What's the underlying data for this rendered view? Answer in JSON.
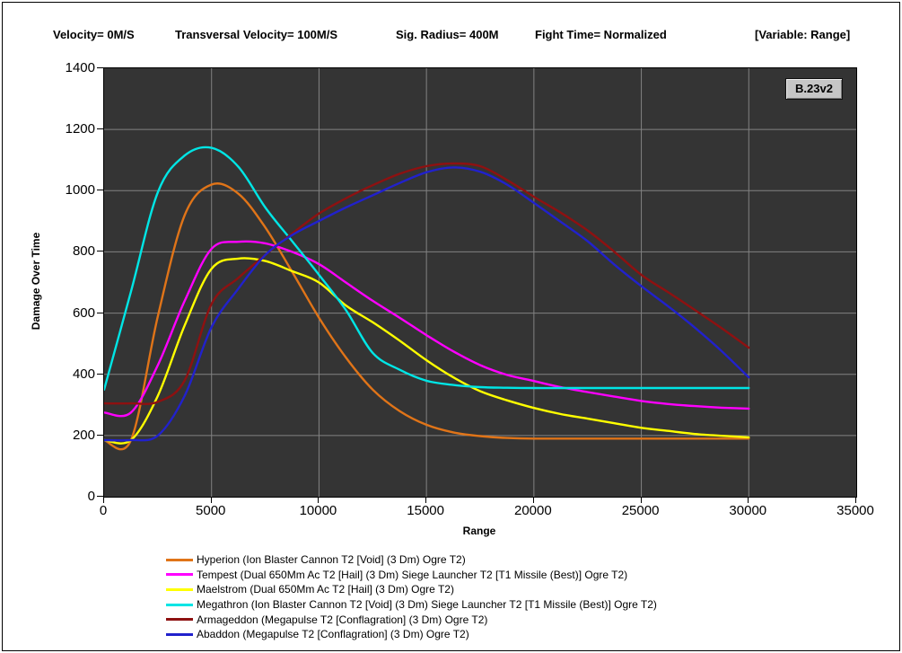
{
  "header": {
    "items": [
      "Velocity= 0M/S",
      "Transversal Velocity= 100M/S",
      "Sig. Radius= 400M",
      "Fight Time= Normalized",
      "[Variable: Range]"
    ]
  },
  "badge": "B.23v2",
  "chart_data": {
    "type": "line",
    "title": "",
    "xlabel": "Range",
    "ylabel": "Damage Over Time",
    "xlim": [
      0,
      35000
    ],
    "ylim": [
      0,
      1400
    ],
    "x_ticks": [
      0,
      5000,
      10000,
      15000,
      20000,
      25000,
      30000,
      35000
    ],
    "y_ticks": [
      0,
      200,
      400,
      600,
      800,
      1000,
      1200,
      1400
    ],
    "grid": true,
    "legend_position": "bottom",
    "plot_bg": "#343434",
    "grid_color": "#828282",
    "x": [
      0,
      1250,
      2500,
      3750,
      5000,
      6250,
      7500,
      8750,
      10000,
      11250,
      12500,
      13750,
      15000,
      16250,
      17500,
      18750,
      20000,
      21250,
      22500,
      23750,
      25000,
      26250,
      27500,
      28750,
      30000
    ],
    "series": [
      {
        "name": "Hyperion (Ion Blaster Cannon T2 [Void] (3 Dm) Ogre T2)",
        "color": "#e07418",
        "values": [
          185,
          185,
          590,
          920,
          1020,
          990,
          880,
          735,
          585,
          455,
          350,
          280,
          235,
          210,
          198,
          192,
          190,
          190,
          190,
          190,
          190,
          190,
          190,
          190,
          190
        ]
      },
      {
        "name": "Tempest (Dual 650Mm Ac T2 [Hail] (3 Dm) Siege Launcher T2 [T1 Missile (Best)] Ogre T2)",
        "color": "#ff00ff",
        "values": [
          275,
          275,
          430,
          640,
          810,
          833,
          828,
          800,
          760,
          700,
          640,
          585,
          528,
          475,
          430,
          398,
          378,
          358,
          342,
          327,
          313,
          303,
          296,
          291,
          288
        ]
      },
      {
        "name": "Maelstrom (Dual 650Mm Ac T2 [Hail] (3 Dm) Ogre T2)",
        "color": "#ffff00",
        "values": [
          185,
          185,
          330,
          560,
          745,
          778,
          770,
          737,
          700,
          625,
          570,
          510,
          446,
          390,
          345,
          315,
          290,
          270,
          255,
          240,
          225,
          215,
          205,
          199,
          194
        ]
      },
      {
        "name": "Megathron (Ion Blaster Cannon T2 [Void] (3 Dm) Siege Launcher T2 [T1 Missile (Best)] Ogre T2)",
        "color": "#00e5e5",
        "values": [
          350,
          670,
          995,
          1115,
          1140,
          1078,
          945,
          835,
          725,
          610,
          470,
          415,
          379,
          365,
          358,
          356,
          355,
          355,
          355,
          355,
          355,
          355,
          355,
          355,
          355
        ]
      },
      {
        "name": "Armageddon (Megapulse T2 [Conflagration] (3 Dm) Ogre T2)",
        "color": "#8e1111",
        "values": [
          305,
          305,
          310,
          380,
          630,
          715,
          790,
          860,
          925,
          975,
          1018,
          1055,
          1080,
          1089,
          1080,
          1035,
          980,
          928,
          870,
          800,
          725,
          668,
          610,
          550,
          487
        ]
      },
      {
        "name": "Abaddon (Megapulse T2 [Conflagration] (3 Dm) Ogre T2)",
        "color": "#2121cc",
        "values": [
          185,
          185,
          200,
          330,
          554,
          680,
          790,
          855,
          901,
          945,
          985,
          1025,
          1060,
          1076,
          1062,
          1020,
          960,
          898,
          835,
          758,
          688,
          622,
          552,
          475,
          390
        ]
      }
    ]
  }
}
